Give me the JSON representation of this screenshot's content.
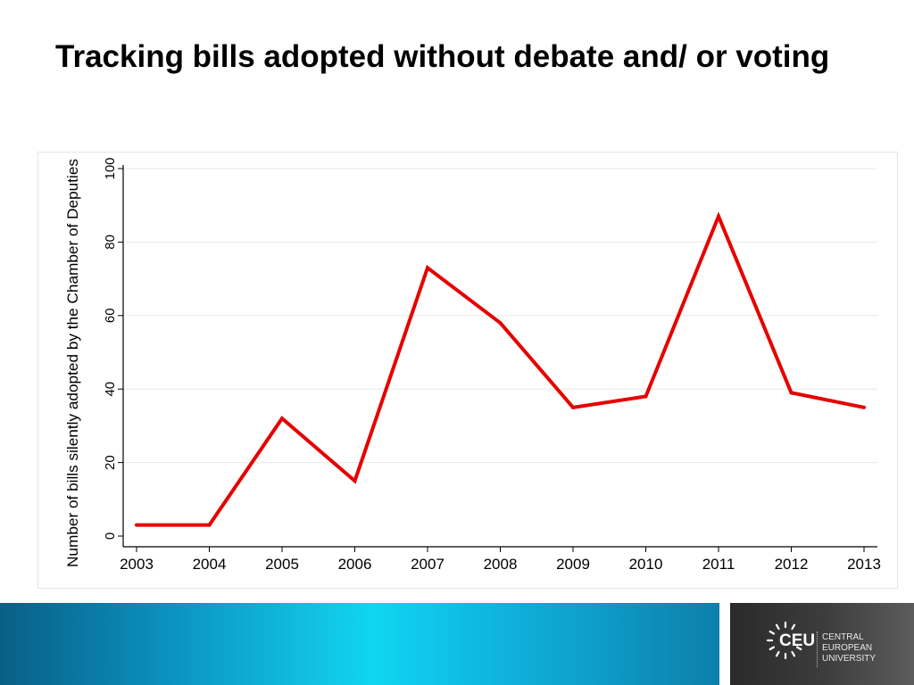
{
  "slide": {
    "title": "Tracking bills adopted without debate and/ or voting"
  },
  "logo": {
    "abbr": "CEU",
    "name_lines": [
      "CENTRAL",
      "EUROPEAN",
      "UNIVERSITY"
    ]
  },
  "colors": {
    "line": "#e60000",
    "grid": "#e8e8e8",
    "axis": "#000000"
  },
  "chart_data": {
    "type": "line",
    "title": "",
    "xlabel": "",
    "ylabel": "Number of bills silently adopted by the Chamber of Deputies",
    "categories": [
      "2003",
      "2004",
      "2005",
      "2006",
      "2007",
      "2008",
      "2009",
      "2010",
      "2011",
      "2012",
      "2013"
    ],
    "values": [
      3,
      3,
      32,
      15,
      73,
      58,
      35,
      38,
      87,
      39,
      35
    ],
    "ylim": [
      0,
      100
    ],
    "yticks": [
      0,
      20,
      40,
      60,
      80,
      100
    ],
    "grid": true,
    "legend": "none"
  }
}
